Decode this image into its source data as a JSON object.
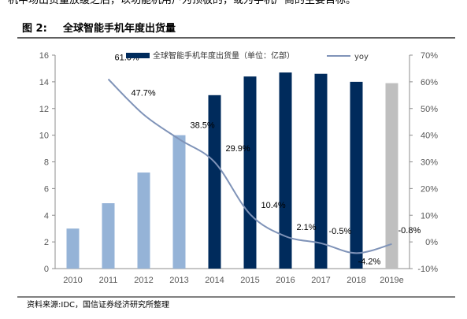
{
  "header_text": "机中场出货量放缓之后，以功能机用户为顶板的，或为手机厂商的主要目标。",
  "figure": {
    "label": "图 2:",
    "title": "全球智能手机年度出货量"
  },
  "source": "资料来源:IDC，国信证券经济研究所整理",
  "colors": {
    "bar_early": "#95b3d7",
    "bar_late": "#002b5c",
    "bar_estimate": "#bfbfbf",
    "line": "#7f93b8",
    "title_rule": "#000000"
  },
  "chart_data": {
    "type": "bar+line",
    "categories": [
      "2010",
      "2011",
      "2012",
      "2013",
      "2014",
      "2015",
      "2016",
      "2017",
      "2018",
      "2019e"
    ],
    "series": [
      {
        "name": "全球智能手机年度出货量（单位：亿部）",
        "type": "bar",
        "axis": "left",
        "values": [
          3.0,
          4.9,
          7.2,
          10.0,
          13.0,
          14.4,
          14.7,
          14.6,
          14.0,
          13.9
        ],
        "color_groups": [
          "early",
          "early",
          "early",
          "early",
          "late",
          "late",
          "late",
          "late",
          "late",
          "estimate"
        ]
      },
      {
        "name": "yoy",
        "type": "line",
        "axis": "right",
        "values": [
          null,
          61.0,
          47.7,
          38.5,
          29.9,
          10.4,
          2.1,
          -0.5,
          -4.2,
          -0.8
        ],
        "labels": [
          "",
          "61.0%",
          "47.7%",
          "38.5%",
          "29.9%",
          "10.4%",
          "2.1%",
          "-0.5%",
          "-4.2%",
          "-0.8%"
        ]
      }
    ],
    "y_left": {
      "min": 0,
      "max": 16,
      "step": 2,
      "ticks": [
        "0",
        "2",
        "4",
        "6",
        "8",
        "10",
        "12",
        "14",
        "16"
      ]
    },
    "y_right": {
      "min": -10,
      "max": 70,
      "step": 10,
      "ticks": [
        "-10%",
        "0%",
        "10%",
        "20%",
        "30%",
        "40%",
        "50%",
        "60%",
        "70%"
      ]
    },
    "legend": {
      "placement": "top",
      "entries": [
        "全球智能手机年度出货量（单位：亿部）",
        "yoy"
      ]
    },
    "grid": false
  }
}
